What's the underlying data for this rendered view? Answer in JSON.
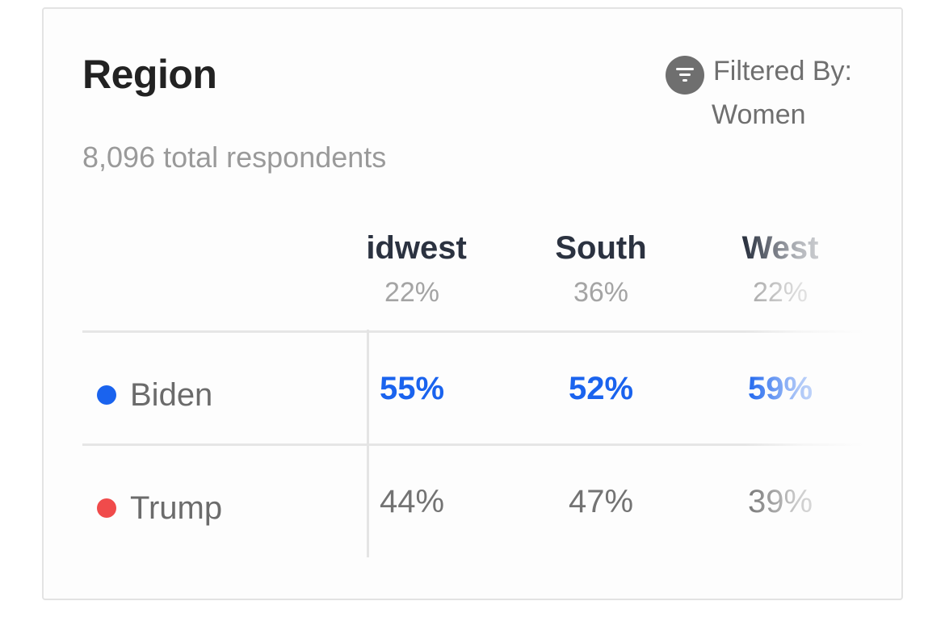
{
  "card": {
    "title": "Region",
    "respondents": "8,096 total respondents",
    "filter": {
      "label": "Filtered By:",
      "value": "Women",
      "icon": "filter-icon"
    }
  },
  "table": {
    "columns": [
      {
        "name": "Midwest",
        "display": "lidwest",
        "share": "22%"
      },
      {
        "name": "South",
        "display": "South",
        "share": "36%"
      },
      {
        "name": "West",
        "display": "West",
        "share": "22%"
      }
    ],
    "rows": [
      {
        "candidate": "Biden",
        "dot_color": "#1a63ee",
        "values": [
          "55%",
          "52%",
          "59%"
        ]
      },
      {
        "candidate": "Trump",
        "dot_color": "#f04b4b",
        "values": [
          "44%",
          "47%",
          "39%"
        ]
      }
    ]
  }
}
